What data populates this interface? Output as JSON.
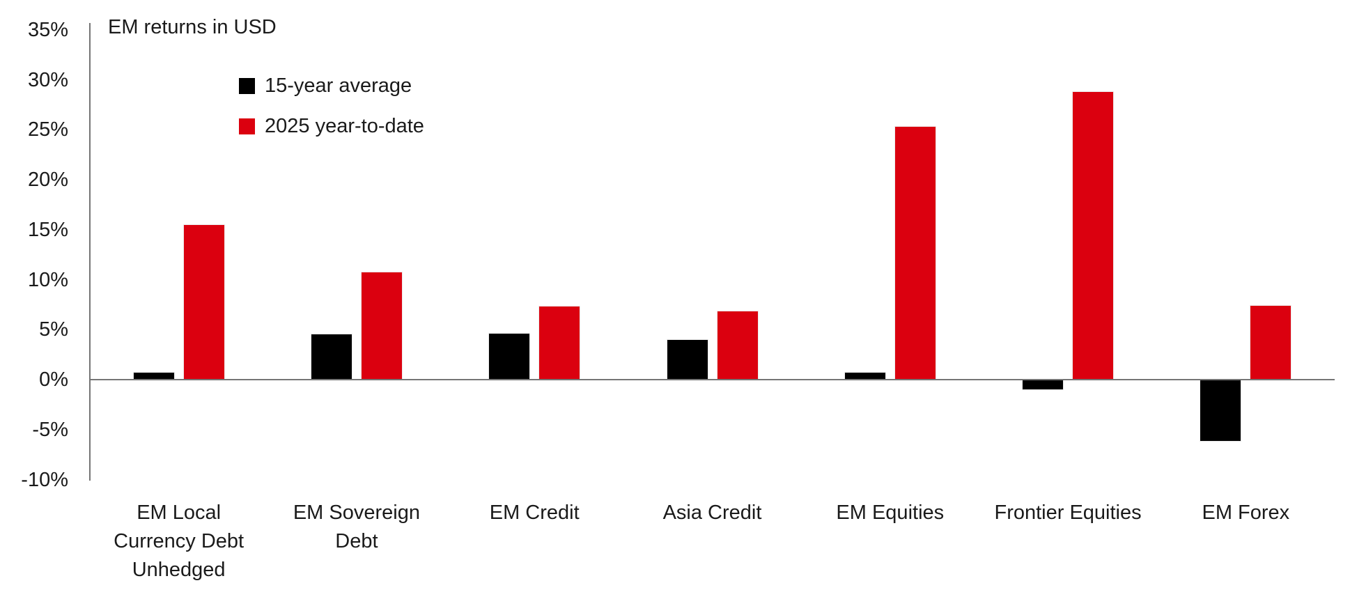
{
  "chart": {
    "title": "EM returns in USD"
  },
  "legend": {
    "items": [
      {
        "label": "15-year average",
        "color": "#000000"
      },
      {
        "label": "2025 year-to-date",
        "color": "#db000f"
      }
    ]
  },
  "chart_data": {
    "type": "bar",
    "title": "EM returns in USD",
    "categories": [
      "EM Local Currency Debt Unhedged",
      "EM Sovereign Debt",
      "EM Credit",
      "Asia Credit",
      "EM Equities",
      "Frontier Equities",
      "EM Forex"
    ],
    "category_label_lines": [
      [
        "EM Local",
        "Currency Debt",
        "Unhedged"
      ],
      [
        "EM Sovereign",
        "Debt"
      ],
      [
        "EM Credit"
      ],
      [
        "Asia Credit"
      ],
      [
        "EM Equities"
      ],
      [
        "Frontier Equities"
      ],
      [
        "EM Forex"
      ]
    ],
    "series": [
      {
        "name": "15-year average",
        "color": "#000000",
        "values": [
          0.7,
          4.5,
          4.6,
          4.0,
          0.7,
          -1.0,
          -6.1
        ]
      },
      {
        "name": "2025 year-to-date",
        "color": "#db000f",
        "values": [
          15.5,
          10.7,
          7.3,
          6.8,
          25.3,
          28.8,
          7.4
        ]
      }
    ],
    "xlabel": "",
    "ylabel": "",
    "ylim": [
      -10,
      35
    ],
    "ytick_step": 5,
    "ytick_labels": [
      "35%",
      "30%",
      "25%",
      "20%",
      "15%",
      "10%",
      "5%",
      "0%",
      "-5%",
      "-10%"
    ],
    "grid": false,
    "legend_position": "inside-top-left",
    "colors": {
      "axis_line": "#757575",
      "text": "#1a1a1a",
      "background": "#ffffff"
    }
  }
}
